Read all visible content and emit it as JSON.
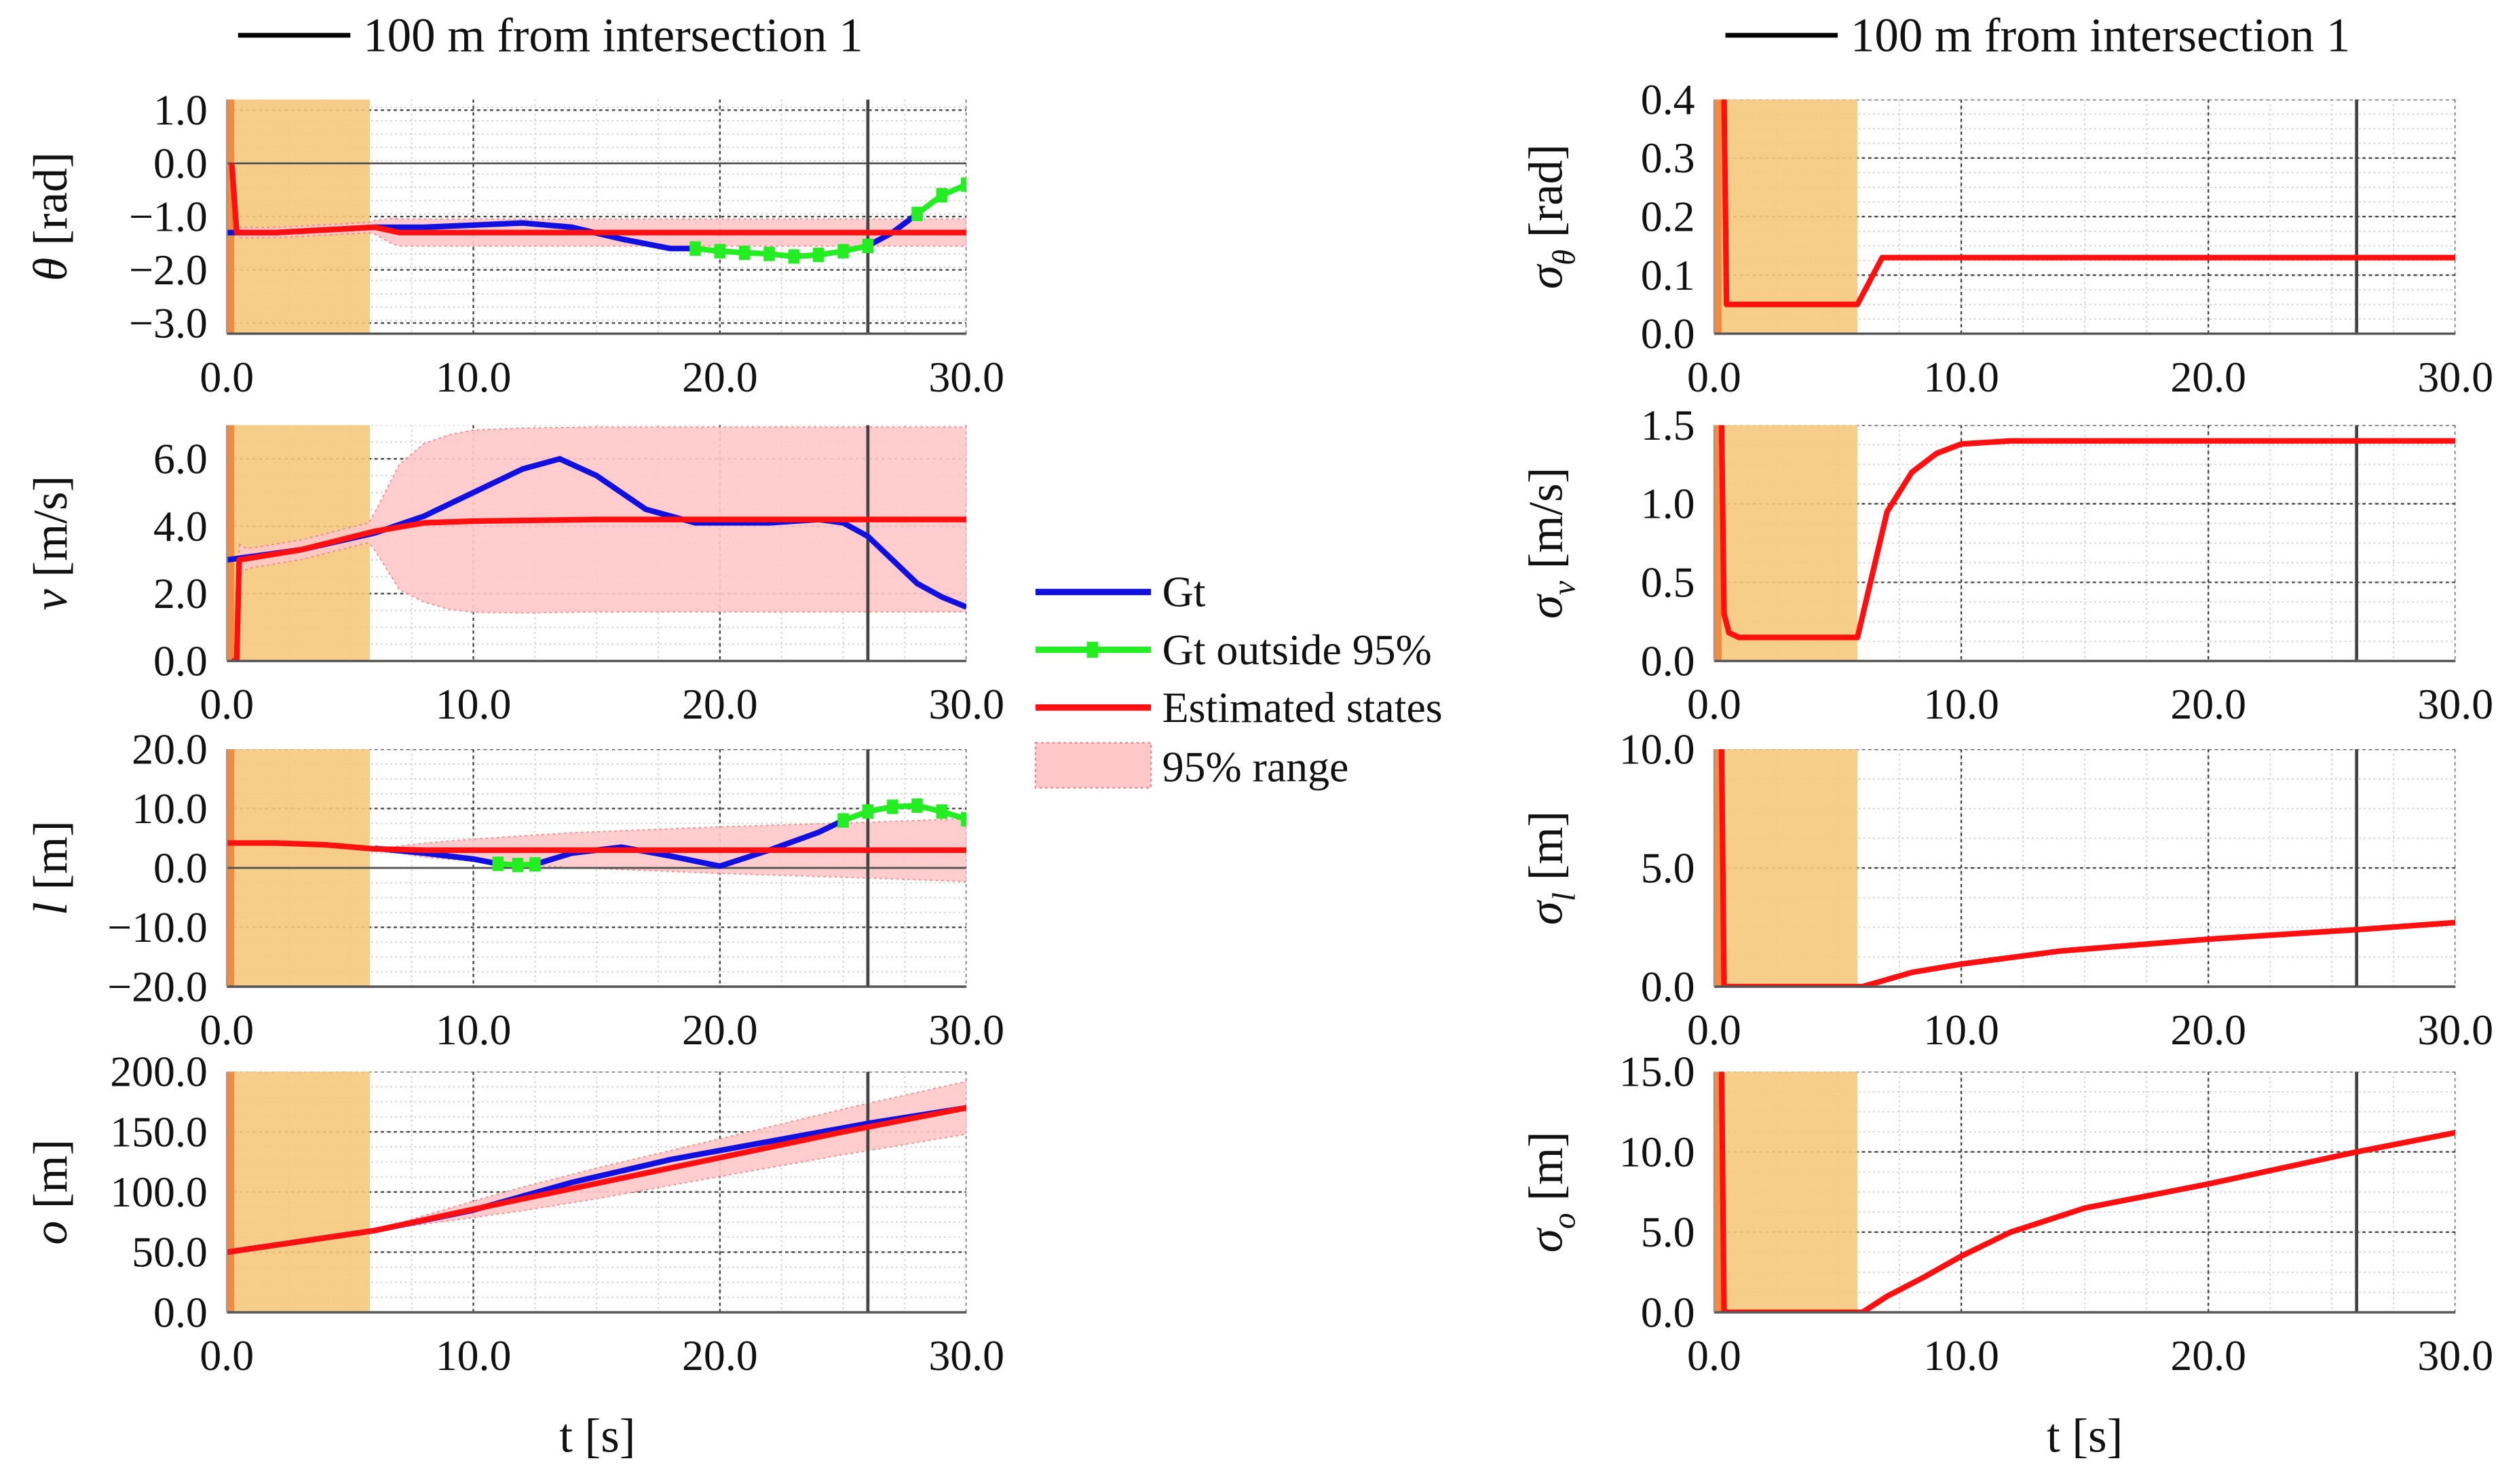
{
  "top_legends": [
    {
      "label": "100 m from intersection 1",
      "color": "#000000"
    },
    {
      "label": "100 m from intersection 1",
      "color": "#000000"
    }
  ],
  "legend": [
    {
      "label": "Gt",
      "color": "#1010e0",
      "kind": "line"
    },
    {
      "label": "Gt outside 95%",
      "color": "#22ee22",
      "kind": "marker-line"
    },
    {
      "label": "Estimated states",
      "color": "#ff1010",
      "kind": "line"
    },
    {
      "label": "95% range",
      "color": "#ffc8c8",
      "kind": "patch"
    }
  ],
  "xlabel": "t [s]",
  "colors": {
    "init_region": "#f5c87c",
    "init_strip": "#f28a40",
    "band": "#ffc8c8",
    "gt": "#1010e0",
    "gt_out": "#22ee22",
    "est": "#ff1010",
    "marker": "#333333"
  },
  "chart_data": [
    {
      "id": "theta",
      "type": "line",
      "ylabel_main": "θ",
      "ylabel_sub": "",
      "ylabel_unit": " [rad]",
      "xlim": [
        0,
        30
      ],
      "ylim": [
        -3.2,
        1.2
      ],
      "yticks": [
        1,
        0,
        -1,
        -2,
        -3
      ],
      "ytick_labels": [
        "1.0",
        "0.0",
        "−1.0",
        "−2.0",
        "−3.0"
      ],
      "xticks": [
        0,
        10,
        20,
        30
      ],
      "xtick_labels": [
        "0.0",
        "10.0",
        "20.0",
        "30.0"
      ],
      "zero_line": true,
      "init_region": [
        0,
        5.8
      ],
      "marker_t": 26,
      "gt": [
        [
          0,
          -1.3
        ],
        [
          2,
          -1.3
        ],
        [
          4,
          -1.25
        ],
        [
          6,
          -1.2
        ],
        [
          8,
          -1.2
        ],
        [
          10,
          -1.16
        ],
        [
          12,
          -1.12
        ],
        [
          14,
          -1.2
        ],
        [
          16,
          -1.42
        ],
        [
          18,
          -1.6
        ],
        [
          19,
          -1.6
        ]
      ],
      "gt_out": [
        [
          19,
          -1.6
        ],
        [
          20,
          -1.65
        ],
        [
          21,
          -1.68
        ],
        [
          22,
          -1.7
        ],
        [
          23,
          -1.75
        ],
        [
          24,
          -1.72
        ],
        [
          25,
          -1.65
        ],
        [
          26,
          -1.55
        ]
      ],
      "gt2": [
        [
          26,
          -1.55
        ],
        [
          27,
          -1.3
        ],
        [
          28,
          -0.95
        ]
      ],
      "gt_out2": [
        [
          28,
          -0.95
        ],
        [
          29,
          -0.6
        ],
        [
          30,
          -0.4
        ]
      ],
      "est": [
        [
          0.2,
          0
        ],
        [
          0.4,
          -1.3
        ],
        [
          2,
          -1.3
        ],
        [
          4,
          -1.25
        ],
        [
          6,
          -1.2
        ],
        [
          7,
          -1.3
        ],
        [
          30,
          -1.3
        ]
      ],
      "band_sigma_ref": "sigma_theta"
    },
    {
      "id": "v",
      "type": "line",
      "ylabel_main": "v",
      "ylabel_sub": "",
      "ylabel_unit": " [m/s]",
      "xlim": [
        0,
        30
      ],
      "ylim": [
        0,
        7
      ],
      "yticks": [
        0,
        2,
        4,
        6
      ],
      "ytick_labels": [
        "0.0",
        "2.0",
        "4.0",
        "6.0"
      ],
      "xticks": [
        0,
        10,
        20,
        30
      ],
      "xtick_labels": [
        "0.0",
        "10.0",
        "20.0",
        "30.0"
      ],
      "zero_line": false,
      "init_region": [
        0,
        5.8
      ],
      "marker_t": 26,
      "gt": [
        [
          0,
          3.0
        ],
        [
          3,
          3.3
        ],
        [
          6,
          3.8
        ],
        [
          8,
          4.3
        ],
        [
          10,
          5.0
        ],
        [
          12,
          5.7
        ],
        [
          13.5,
          6.0
        ],
        [
          15,
          5.5
        ],
        [
          17,
          4.5
        ],
        [
          19,
          4.1
        ],
        [
          22,
          4.1
        ],
        [
          24,
          4.2
        ],
        [
          25,
          4.1
        ],
        [
          26,
          3.7
        ],
        [
          27,
          3.0
        ],
        [
          28,
          2.3
        ],
        [
          29,
          1.9
        ],
        [
          30,
          1.6
        ]
      ],
      "gt_out": [],
      "gt2": [],
      "gt_out2": [],
      "est": [
        [
          0.2,
          0
        ],
        [
          0.4,
          0
        ],
        [
          0.5,
          3.0
        ],
        [
          3,
          3.3
        ],
        [
          6,
          3.85
        ],
        [
          8,
          4.1
        ],
        [
          10,
          4.15
        ],
        [
          15,
          4.2
        ],
        [
          30,
          4.2
        ]
      ],
      "band_sigma_ref": "sigma_v"
    },
    {
      "id": "l",
      "type": "line",
      "ylabel_main": "l",
      "ylabel_sub": "",
      "ylabel_unit": " [m]",
      "xlim": [
        0,
        30
      ],
      "ylim": [
        -20,
        20
      ],
      "yticks": [
        20,
        10,
        0,
        -10,
        -20
      ],
      "ytick_labels": [
        "20.0",
        "10.0",
        "0.0",
        "−10.0",
        "−20.0"
      ],
      "xticks": [
        0,
        10,
        20,
        30
      ],
      "xtick_labels": [
        "0.0",
        "10.0",
        "20.0",
        "30.0"
      ],
      "zero_line": true,
      "init_region": [
        0,
        5.8
      ],
      "marker_t": 26,
      "gt": [
        [
          6,
          3.3
        ],
        [
          8,
          2.5
        ],
        [
          10,
          1.5
        ],
        [
          11,
          0.7
        ]
      ],
      "gt_out": [
        [
          11,
          0.7
        ],
        [
          11.8,
          0.5
        ],
        [
          12.5,
          0.6
        ]
      ],
      "gt2": [
        [
          12.5,
          0.6
        ],
        [
          14,
          2.5
        ],
        [
          16,
          3.5
        ],
        [
          18,
          2
        ],
        [
          20,
          0.3
        ],
        [
          22,
          3
        ],
        [
          24,
          6
        ],
        [
          25,
          8
        ]
      ],
      "gt_out2": [
        [
          25,
          8
        ],
        [
          26,
          9.5
        ],
        [
          27,
          10.3
        ],
        [
          28,
          10.5
        ],
        [
          29,
          9.5
        ],
        [
          30,
          8.2
        ]
      ],
      "est": [
        [
          0,
          4.2
        ],
        [
          2,
          4.2
        ],
        [
          4,
          3.9
        ],
        [
          6,
          3.2
        ],
        [
          8,
          3
        ],
        [
          30,
          3
        ]
      ],
      "band_sigma_ref": "sigma_l"
    },
    {
      "id": "o",
      "type": "line",
      "ylabel_main": "o",
      "ylabel_sub": "",
      "ylabel_unit": " [m]",
      "xlim": [
        0,
        30
      ],
      "ylim": [
        0,
        200
      ],
      "yticks": [
        0,
        50,
        100,
        150,
        200
      ],
      "ytick_labels": [
        "0.0",
        "50.0",
        "100.0",
        "150.0",
        "200.0"
      ],
      "xticks": [
        0,
        10,
        20,
        30
      ],
      "xtick_labels": [
        "0.0",
        "10.0",
        "20.0",
        "30.0"
      ],
      "zero_line": false,
      "init_region": [
        0,
        5.8
      ],
      "marker_t": 26,
      "gt": [
        [
          0,
          50
        ],
        [
          6,
          68
        ],
        [
          10,
          85
        ],
        [
          14,
          108
        ],
        [
          18,
          127
        ],
        [
          22,
          142
        ],
        [
          26,
          157
        ],
        [
          30,
          170
        ]
      ],
      "gt_out": [],
      "gt2": [],
      "gt_out2": [],
      "est": [
        [
          0,
          50
        ],
        [
          6,
          68
        ],
        [
          11,
          90
        ],
        [
          18,
          120
        ],
        [
          25,
          150
        ],
        [
          30,
          170
        ]
      ],
      "band_sigma_ref": "sigma_o"
    },
    {
      "id": "sigma_theta",
      "type": "line",
      "ylabel_main": "σ",
      "ylabel_sub": "θ",
      "ylabel_unit": " [rad]",
      "xlim": [
        0,
        30
      ],
      "ylim": [
        0,
        0.4
      ],
      "yticks": [
        0,
        0.1,
        0.2,
        0.3,
        0.4
      ],
      "ytick_labels": [
        "0.0",
        "0.1",
        "0.2",
        "0.3",
        "0.4"
      ],
      "xticks": [
        0,
        10,
        20,
        30
      ],
      "xtick_labels": [
        "0.0",
        "10.0",
        "20.0",
        "30.0"
      ],
      "zero_line": false,
      "init_region": [
        0,
        5.8
      ],
      "marker_t": 26,
      "est": [
        [
          0.3,
          0.4
        ],
        [
          0.4,
          0.4
        ],
        [
          0.5,
          0.05
        ],
        [
          5.8,
          0.05
        ],
        [
          6.8,
          0.13
        ],
        [
          30,
          0.13
        ]
      ]
    },
    {
      "id": "sigma_v",
      "type": "line",
      "ylabel_main": "σ",
      "ylabel_sub": "v",
      "ylabel_unit": " [m/s]",
      "xlim": [
        0,
        30
      ],
      "ylim": [
        0,
        1.5
      ],
      "yticks": [
        0,
        0.5,
        1,
        1.5
      ],
      "ytick_labels": [
        "0.0",
        "0.5",
        "1.0",
        "1.5"
      ],
      "xticks": [
        0,
        10,
        20,
        30
      ],
      "xtick_labels": [
        "0.0",
        "10.0",
        "20.0",
        "30.0"
      ],
      "zero_line": false,
      "init_region": [
        0,
        5.8
      ],
      "marker_t": 26,
      "est": [
        [
          0.3,
          1.5
        ],
        [
          0.4,
          0.3
        ],
        [
          0.6,
          0.18
        ],
        [
          1,
          0.15
        ],
        [
          5.8,
          0.15
        ],
        [
          7,
          0.95
        ],
        [
          8,
          1.2
        ],
        [
          9,
          1.32
        ],
        [
          10,
          1.38
        ],
        [
          12,
          1.4
        ],
        [
          30,
          1.4
        ]
      ]
    },
    {
      "id": "sigma_l",
      "type": "line",
      "ylabel_main": "σ",
      "ylabel_sub": "l",
      "ylabel_unit": " [m]",
      "xlim": [
        0,
        30
      ],
      "ylim": [
        0,
        10
      ],
      "yticks": [
        0,
        5,
        10
      ],
      "ytick_labels": [
        "0.0",
        "5.0",
        "10.0"
      ],
      "xticks": [
        0,
        10,
        20,
        30
      ],
      "xtick_labels": [
        "0.0",
        "10.0",
        "20.0",
        "30.0"
      ],
      "zero_line": false,
      "init_region": [
        0,
        5.8
      ],
      "marker_t": 26,
      "est": [
        [
          0.3,
          10
        ],
        [
          0.4,
          0
        ],
        [
          6,
          0
        ],
        [
          7,
          0.3
        ],
        [
          8,
          0.6
        ],
        [
          10,
          0.95
        ],
        [
          14,
          1.5
        ],
        [
          20,
          2
        ],
        [
          26,
          2.4
        ],
        [
          30,
          2.7
        ]
      ]
    },
    {
      "id": "sigma_o",
      "type": "line",
      "ylabel_main": "σ",
      "ylabel_sub": "o",
      "ylabel_unit": " [m]",
      "xlim": [
        0,
        30
      ],
      "ylim": [
        0,
        15
      ],
      "yticks": [
        0,
        5,
        10,
        15
      ],
      "ytick_labels": [
        "0.0",
        "5.0",
        "10.0",
        "15.0"
      ],
      "xticks": [
        0,
        10,
        20,
        30
      ],
      "xtick_labels": [
        "0.0",
        "10.0",
        "20.0",
        "30.0"
      ],
      "zero_line": false,
      "init_region": [
        0,
        5.8
      ],
      "marker_t": 26,
      "est": [
        [
          0.3,
          15
        ],
        [
          0.4,
          0
        ],
        [
          6,
          0
        ],
        [
          7,
          1
        ],
        [
          8.5,
          2.2
        ],
        [
          10,
          3.5
        ],
        [
          12,
          5
        ],
        [
          15,
          6.5
        ],
        [
          20,
          8
        ],
        [
          26,
          10
        ],
        [
          30,
          11.2
        ]
      ]
    }
  ]
}
